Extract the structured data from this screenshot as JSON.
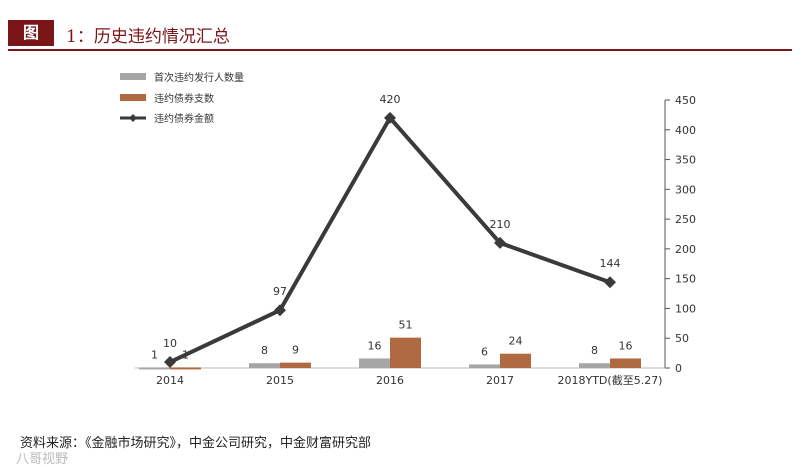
{
  "header": {
    "figure_label": "图",
    "title": "1：历史违约情况汇总"
  },
  "source": "资料来源：《金融市场研究》，中金公司研究，中金财富研究部",
  "watermark": "八哥视野",
  "chart_data": {
    "type": "bar",
    "categories": [
      "2014",
      "2015",
      "2016",
      "2017",
      "2018YTD(截至5.27)"
    ],
    "series": [
      {
        "name": "首次违约发行人数量",
        "type": "bar",
        "axis": "right",
        "color": "#a6a6a6",
        "values": [
          1,
          8,
          16,
          6,
          8
        ]
      },
      {
        "name": "违约债券支数",
        "type": "bar",
        "axis": "right",
        "color": "#b06a42",
        "values": [
          1,
          9,
          51,
          24,
          16
        ]
      },
      {
        "name": "违约债券金额",
        "type": "line",
        "axis": "right",
        "color": "#3a3a3a",
        "values": [
          10,
          97,
          420,
          210,
          144
        ]
      }
    ],
    "bar_labels": {
      "首次违约发行人数量": [
        "1",
        "8",
        "16",
        "6",
        "8"
      ],
      "违约债券支数": [
        "1",
        "9",
        "51",
        "24",
        "16"
      ]
    },
    "line_labels": [
      "10",
      "97",
      "420",
      "210",
      "144"
    ],
    "y_axis": {
      "position": "right",
      "ylim": [
        0,
        450
      ],
      "ticks": [
        0,
        50,
        100,
        150,
        200,
        250,
        300,
        350,
        400,
        450
      ]
    },
    "legend": {
      "placement": "top-left"
    },
    "grid": false
  }
}
